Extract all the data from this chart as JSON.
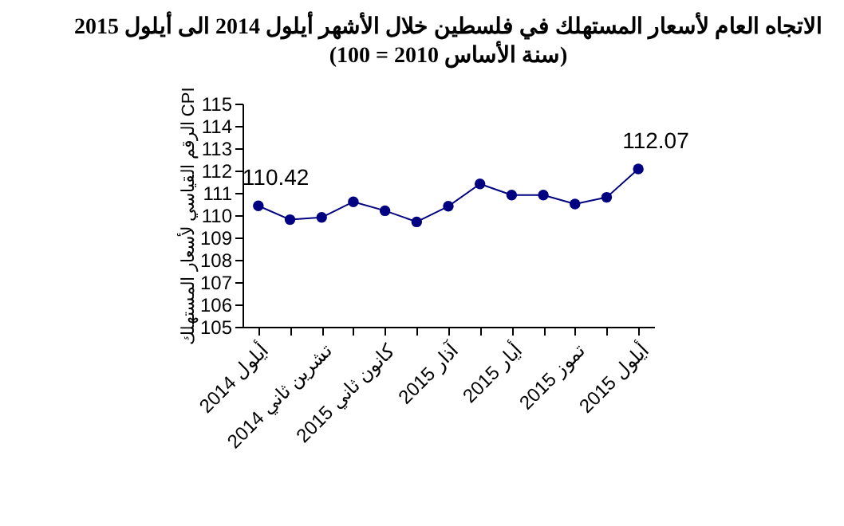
{
  "chart_data": {
    "type": "line",
    "title": "الاتجاه العام لأسعار المستهلك في فلسطين خلال الأشهر  أيلول 2014 الى أيلول 2015",
    "subtitle": "(سنة الأساس 2010 = 100)",
    "ylabel": "الرقم القياسي لأسعار المستهلك CPI",
    "categories": [
      "أيلول 2014",
      null,
      "تشرين ثاني 2014",
      null,
      "كانون ثاني 2015",
      null,
      "آذار 2015",
      null,
      "أيار 2015",
      null,
      "تموز 2015",
      null,
      "أيلول 2015"
    ],
    "series": [
      {
        "color": "#000080",
        "values": [
          110.42,
          109.8,
          109.9,
          110.6,
          110.2,
          109.7,
          110.4,
          111.4,
          110.9,
          110.9,
          110.5,
          110.8,
          112.07
        ],
        "value_labels": [
          "110.42",
          null,
          null,
          null,
          null,
          null,
          null,
          null,
          null,
          null,
          null,
          null,
          "112.07"
        ]
      }
    ],
    "ylim": [
      105,
      115
    ],
    "yticks": [
      105,
      106,
      107,
      108,
      109,
      110,
      111,
      112,
      113,
      114,
      115
    ],
    "grid": false,
    "marker": "circle",
    "line_style": "solid"
  }
}
